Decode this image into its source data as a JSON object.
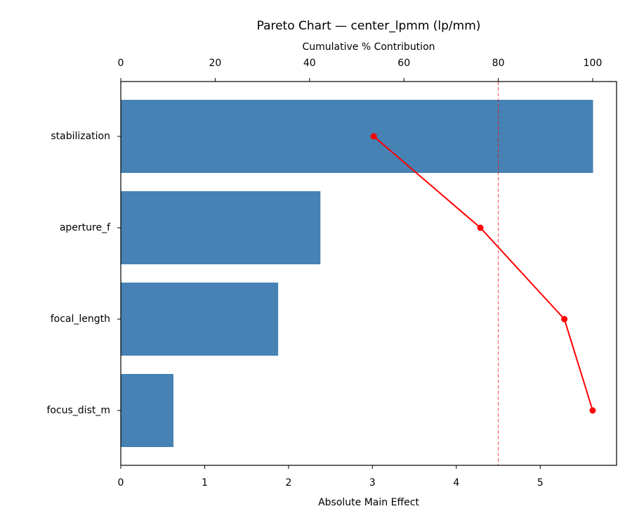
{
  "chart_data": {
    "type": "bar",
    "orientation": "horizontal",
    "title": "Pareto Chart — center_lpmm (lp/mm)",
    "xlabel": "Absolute Main Effect",
    "x2label": "Cumulative % Contribution",
    "categories": [
      "stabilization",
      "aperture_f",
      "focal_length",
      "focus_dist_m"
    ],
    "values": [
      5.63,
      2.38,
      1.876,
      0.628
    ],
    "color": "#4682b4",
    "cumulative": {
      "values": [
        53.6,
        76.2,
        94.0,
        100
      ],
      "color": "#ff0000"
    },
    "threshold": 80,
    "threshold_color": "#ff0000",
    "xlim": [
      0,
      5.91
    ],
    "xticks": [
      0,
      1,
      2,
      3,
      4,
      5
    ],
    "x2lim": [
      0,
      105.06
    ],
    "x2ticks": [
      0,
      20,
      40,
      60,
      80,
      100
    ]
  }
}
